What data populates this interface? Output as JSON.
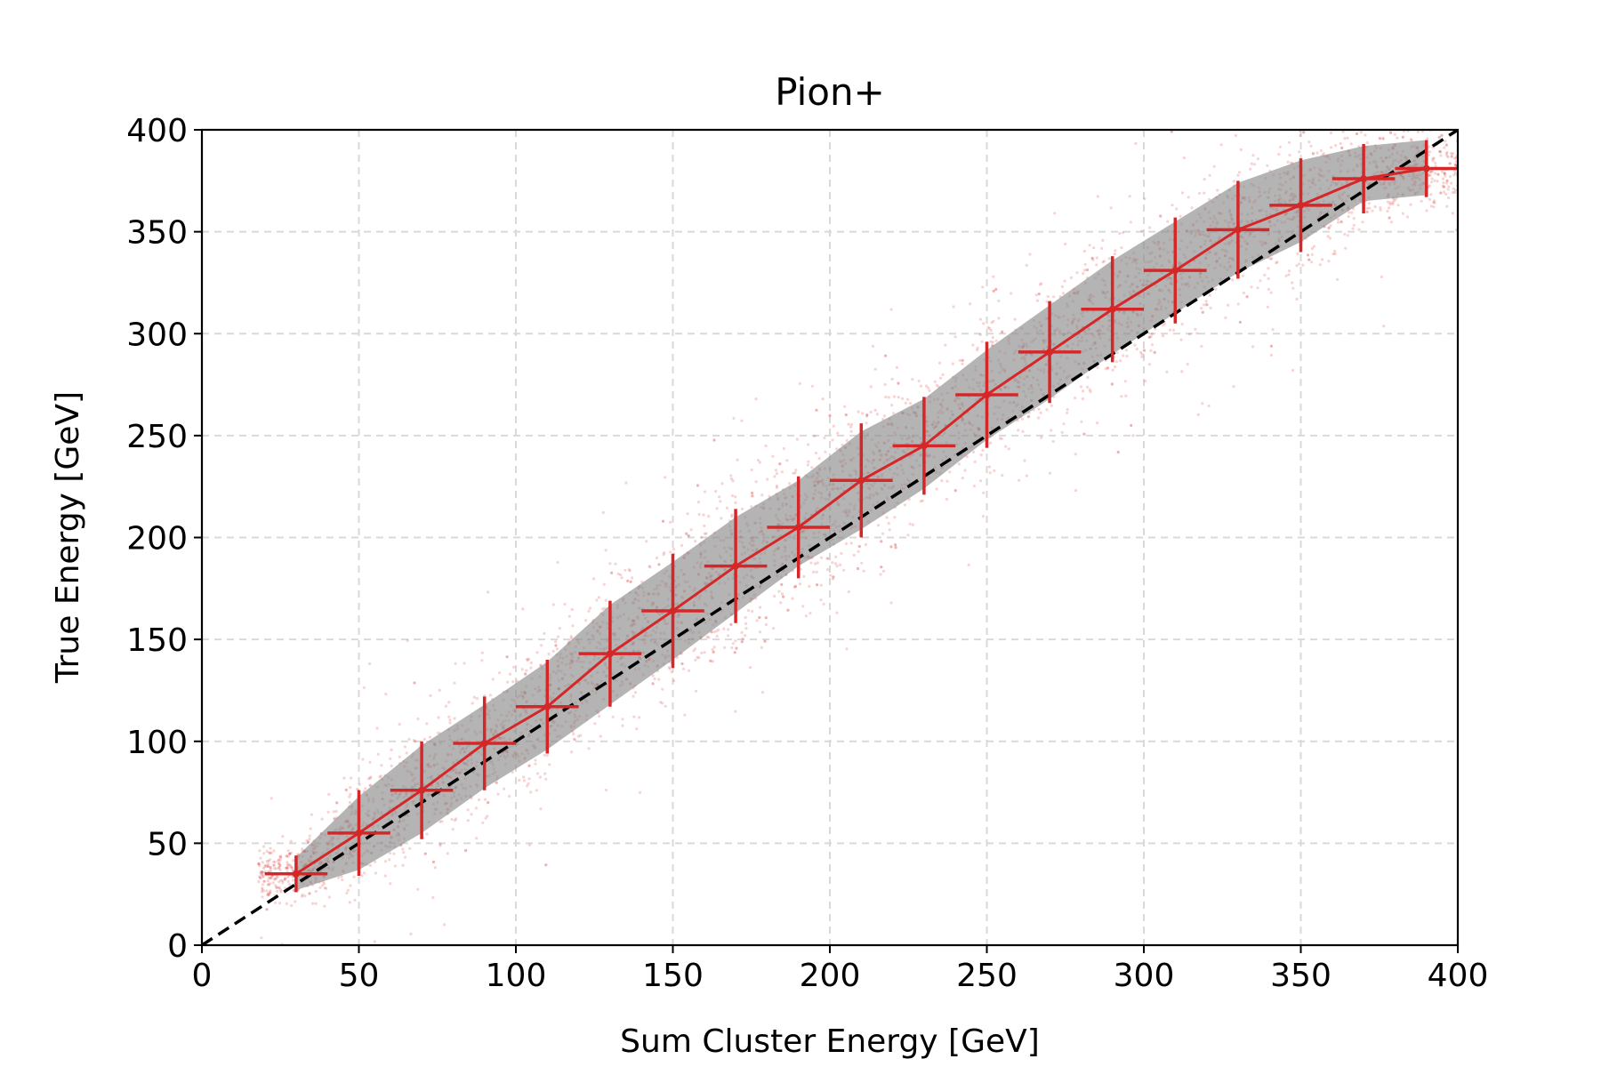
{
  "chart_data": {
    "type": "line",
    "title": "Pion+",
    "xlabel": "Sum Cluster Energy [GeV]",
    "ylabel": "True Energy [GeV]",
    "xlim": [
      0,
      400
    ],
    "ylim": [
      0,
      400
    ],
    "xticks": [
      0,
      50,
      100,
      150,
      200,
      250,
      300,
      350,
      400
    ],
    "yticks": [
      0,
      50,
      100,
      150,
      200,
      250,
      300,
      350,
      400
    ],
    "grid": true,
    "grid_style": "dashed",
    "reference_line": {
      "x": [
        0,
        400
      ],
      "y": [
        0,
        400
      ],
      "style": "dashed",
      "color": "#000000"
    },
    "series": [
      {
        "x": [
          30,
          50,
          70,
          90,
          110,
          130,
          150,
          170,
          190,
          210,
          230,
          250,
          270,
          290,
          310,
          330,
          350,
          370,
          390
        ],
        "y": [
          35,
          55,
          76,
          99,
          117,
          143,
          164,
          186,
          205,
          228,
          245,
          270,
          291,
          312,
          331,
          351,
          363,
          376,
          381
        ],
        "xerr": 10,
        "yerr": [
          9,
          21,
          24,
          23,
          23,
          26,
          28,
          28,
          25,
          28,
          24,
          26,
          25,
          26,
          26,
          24,
          23,
          17,
          14
        ],
        "band_lower": [
          27,
          37,
          55,
          77,
          96,
          118,
          140,
          163,
          186,
          204,
          224,
          248,
          268,
          290,
          310,
          330,
          345,
          365,
          368
        ],
        "band_upper": [
          43,
          73,
          98,
          118,
          139,
          167,
          188,
          210,
          228,
          252,
          268,
          292,
          314,
          336,
          355,
          374,
          385,
          392,
          395
        ],
        "color": "#d62728"
      }
    ],
    "scatter_cloud": {
      "color": "#d62728",
      "alpha": 0.2
    },
    "band_color": "#8c8c8c"
  }
}
